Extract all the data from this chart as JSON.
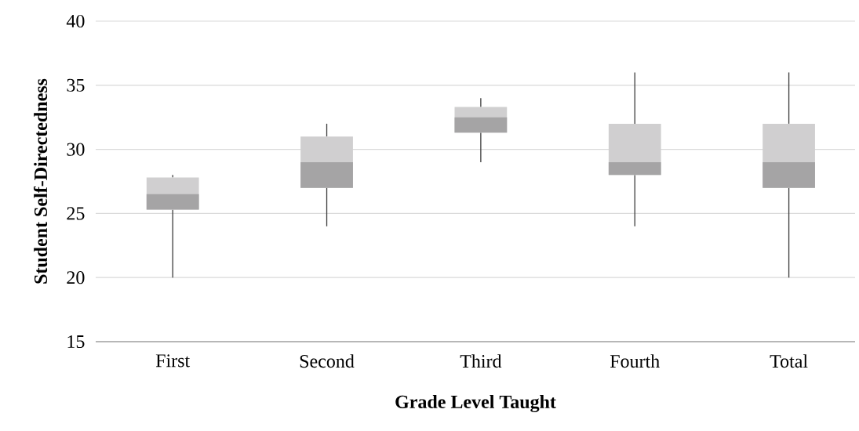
{
  "chart_data": {
    "type": "box",
    "xlabel": "Grade Level Taught",
    "ylabel": "Student Self-Directedness",
    "categories": [
      "First",
      "Second",
      "Third",
      "Fourth",
      "Total"
    ],
    "boxes": [
      {
        "low": 20,
        "q1": 25.3,
        "median": 26.5,
        "q3": 27.8,
        "high": 28
      },
      {
        "low": 24,
        "q1": 27,
        "median": 29,
        "q3": 31,
        "high": 32
      },
      {
        "low": 29,
        "q1": 31.3,
        "median": 32.5,
        "q3": 33.3,
        "high": 34
      },
      {
        "low": 24,
        "q1": 28,
        "median": 29,
        "q3": 32,
        "high": 36
      },
      {
        "low": 20,
        "q1": 27,
        "median": 29,
        "q3": 32,
        "high": 36
      }
    ],
    "color": "#d0cfd0",
    "ylim": [
      15,
      40
    ],
    "yticks": [
      15,
      20,
      25,
      30,
      35,
      40
    ],
    "grid": "y"
  }
}
